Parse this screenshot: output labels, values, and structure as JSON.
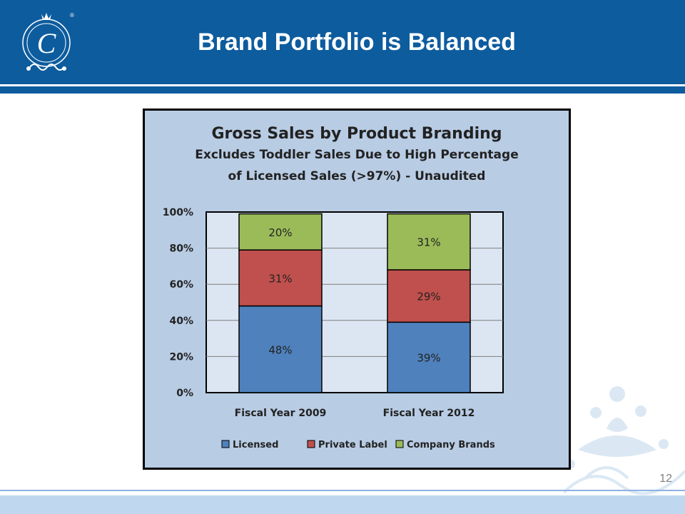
{
  "slide": {
    "title": "Brand Portfolio is Balanced",
    "page_number": "12",
    "header_color": "#0d5c9e"
  },
  "chart_data": {
    "type": "bar",
    "stacked": true,
    "title": "Gross Sales by Product Branding",
    "subtitle_line1": "Excludes Toddler Sales Due to High Percentage",
    "subtitle_line2": "of Licensed Sales (>97%) - Unaudited",
    "categories": [
      "Fiscal Year 2009",
      "Fiscal Year 2012"
    ],
    "series": [
      {
        "name": "Licensed",
        "color": "#4f81bd",
        "values": [
          48,
          39
        ],
        "labels": [
          "48%",
          "39%"
        ]
      },
      {
        "name": "Private Label",
        "color": "#c0504d",
        "values": [
          31,
          29
        ],
        "labels": [
          "31%",
          "29%"
        ]
      },
      {
        "name": "Company Brands",
        "color": "#9bbb59",
        "values": [
          20,
          31
        ],
        "labels": [
          "20%",
          "31%"
        ]
      }
    ],
    "ylim": [
      0,
      100
    ],
    "yticks": [
      "0%",
      "20%",
      "40%",
      "60%",
      "80%",
      "100%"
    ],
    "grid": true,
    "legend_position": "bottom"
  }
}
